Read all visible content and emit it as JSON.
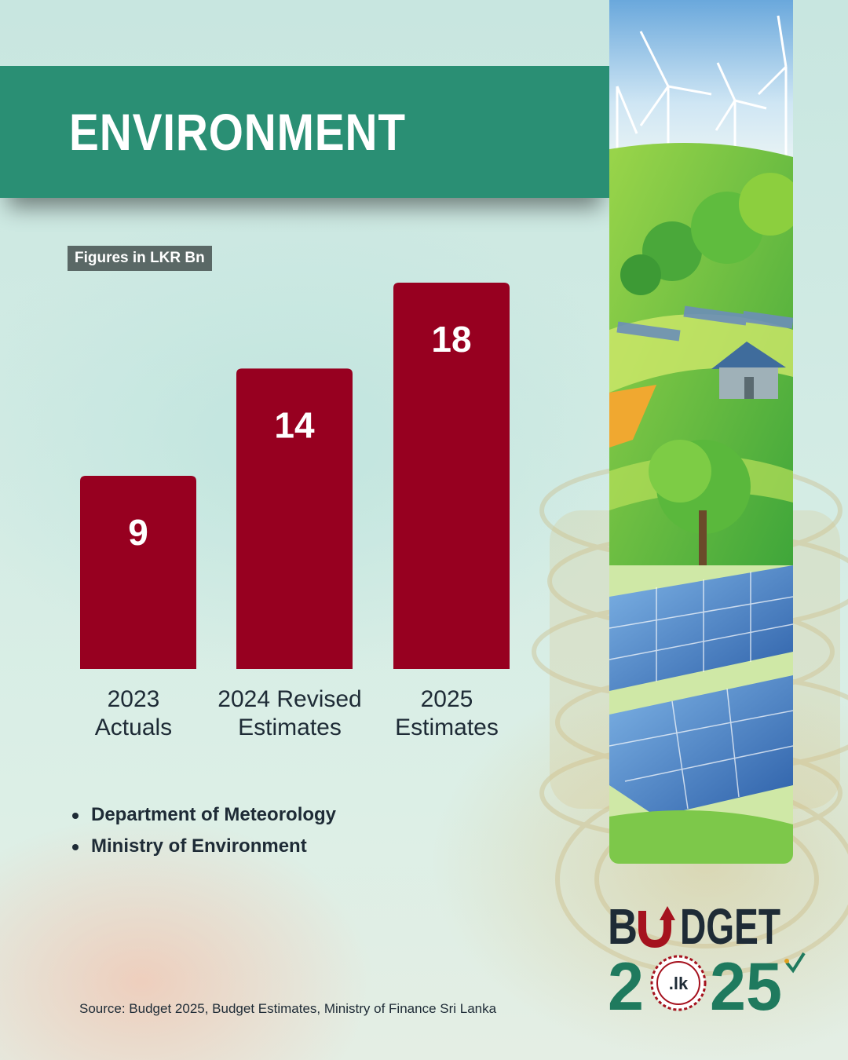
{
  "header": {
    "title": "ENVIRONMENT"
  },
  "units_label": "Figures in LKR Bn",
  "chart_data": {
    "type": "bar",
    "categories": [
      [
        "2023",
        "Actuals"
      ],
      [
        "2024 Revised",
        "Estimates"
      ],
      [
        "2025",
        "Estimates"
      ]
    ],
    "values": [
      9,
      14,
      18
    ],
    "data_labels": [
      "9",
      "14",
      "18"
    ],
    "ylim": [
      0,
      18
    ],
    "grid": false,
    "legend": "none",
    "bar_color": "#970020"
  },
  "institutions": [
    "Department of Meteorology",
    "Ministry of Environment"
  ],
  "source": "Source: Budget 2025, Budget Estimates, Ministry of Finance Sri Lanka",
  "logo": {
    "line1_left": "B",
    "line1_right": "DGET",
    "line2_left": "2",
    "line2_right": "25",
    "badge": ".lk"
  },
  "colors": {
    "banner": "#2a8f74",
    "bars": "#970020",
    "logo_dark": "#1e2b36",
    "logo_green": "#1f7a5e",
    "logo_red": "#a5121e"
  }
}
